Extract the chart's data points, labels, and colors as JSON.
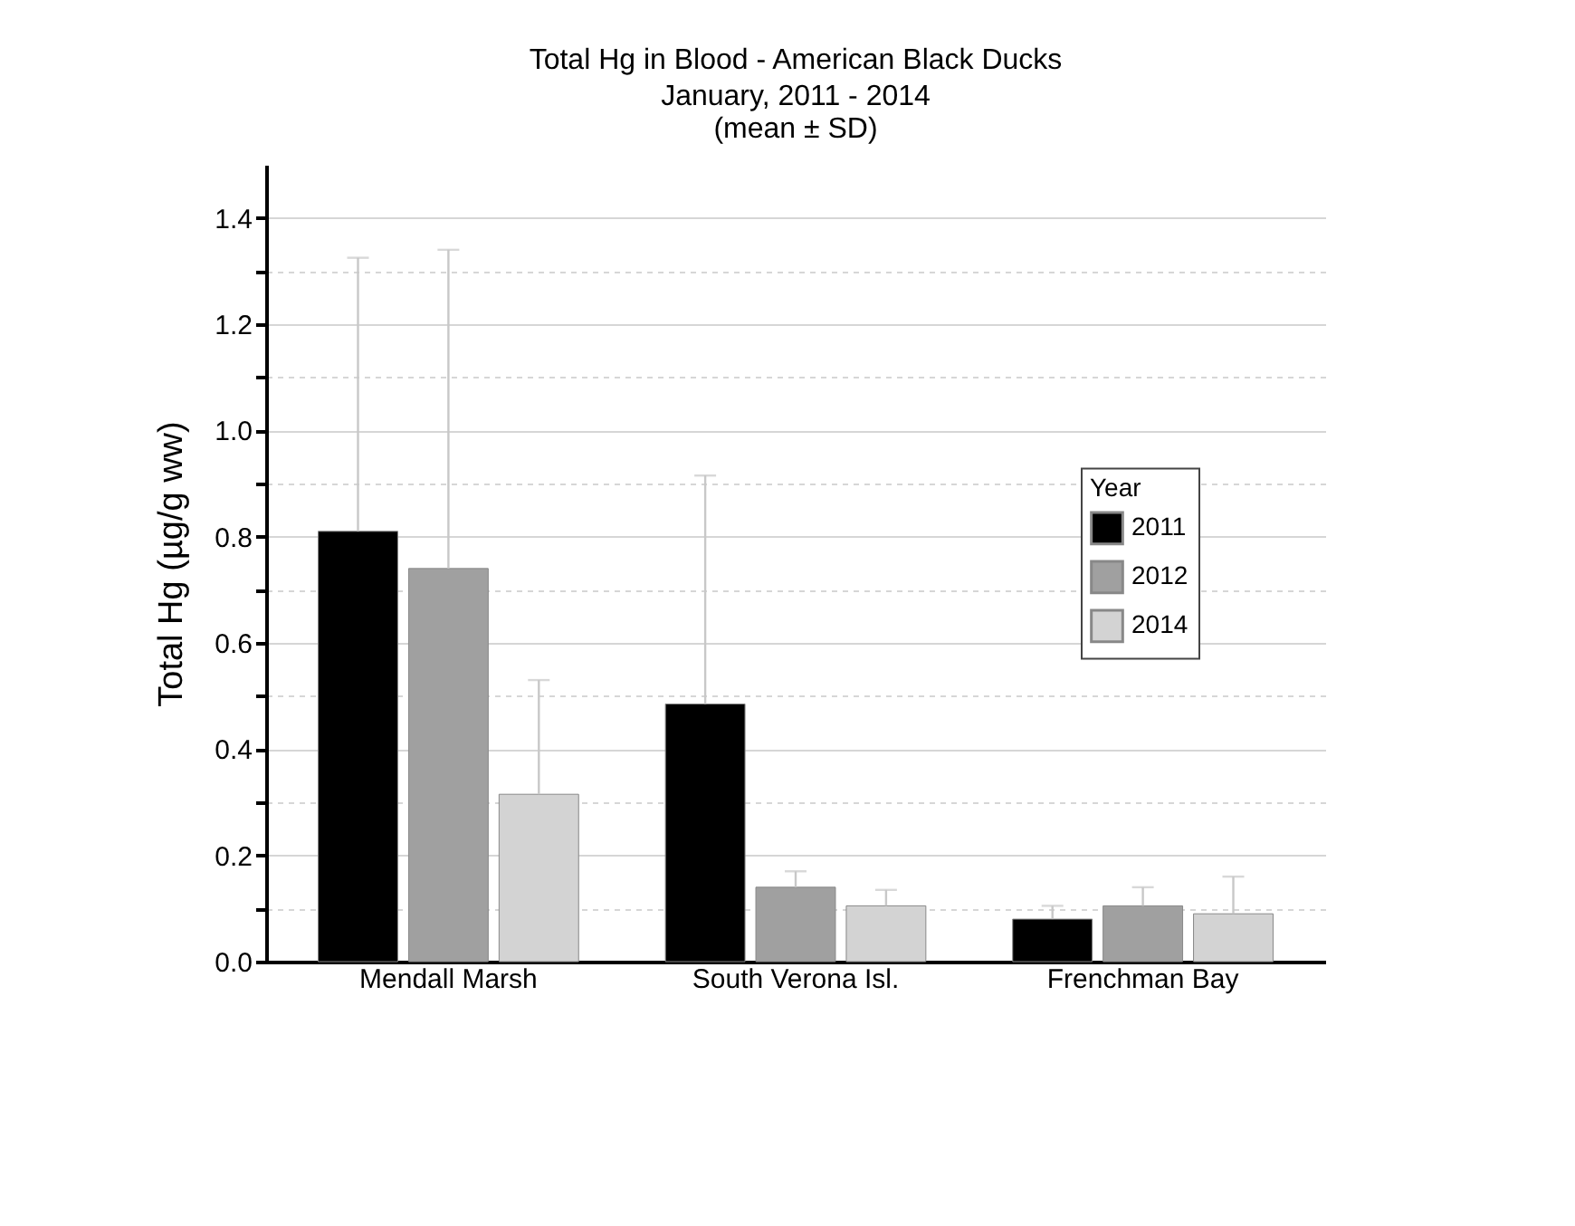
{
  "chart_data": {
    "type": "bar",
    "title": "Total Hg in Blood - American Black Ducks",
    "subtitle": "January, 2011 - 2014",
    "annotations": [
      "(mean ± SD)"
    ],
    "ylabel": "Total Hg (µg/g ww)",
    "legend_title": "Year",
    "categories": [
      "Mendall Marsh",
      "South Verona Isl.",
      "Frenchman Bay"
    ],
    "series": [
      {
        "name": "2011",
        "color": "#000000",
        "values": [
          0.81,
          0.485,
          0.08
        ],
        "errors": [
          [
            0.81,
            1.325
          ],
          [
            0.485,
            0.915
          ],
          [
            0.08,
            0.105
          ]
        ]
      },
      {
        "name": "2012",
        "color": "#a0a0a0",
        "values": [
          0.74,
          0.14,
          0.105
        ],
        "errors": [
          [
            0.74,
            1.34
          ],
          [
            0.14,
            0.17
          ],
          [
            0.105,
            0.14
          ]
        ]
      },
      {
        "name": "2014",
        "color": "#d3d3d3",
        "values": [
          0.315,
          0.105,
          0.09
        ],
        "errors": [
          [
            0.315,
            0.53
          ],
          [
            0.105,
            0.135
          ],
          [
            0.09,
            0.16
          ]
        ]
      }
    ],
    "ylim": [
      0,
      1.5
    ],
    "yticks": [
      {
        "value": 0,
        "label": "0.0"
      },
      {
        "value": 0.1,
        "label": null
      },
      {
        "value": 0.2,
        "label": "0.2"
      },
      {
        "value": 0.3,
        "label": null
      },
      {
        "value": 0.4,
        "label": "0.4"
      },
      {
        "value": 0.5,
        "label": null
      },
      {
        "value": 0.6,
        "label": "0.6"
      },
      {
        "value": 0.7,
        "label": null
      },
      {
        "value": 0.8,
        "label": "0.8"
      },
      {
        "value": 0.9,
        "label": null
      },
      {
        "value": 1.0,
        "label": "1.0"
      },
      {
        "value": 1.1,
        "label": null
      },
      {
        "value": 1.2,
        "label": "1.2"
      },
      {
        "value": 1.3,
        "label": null
      },
      {
        "value": 1.4,
        "label": "1.4"
      }
    ],
    "grid": true,
    "legend": "right"
  }
}
